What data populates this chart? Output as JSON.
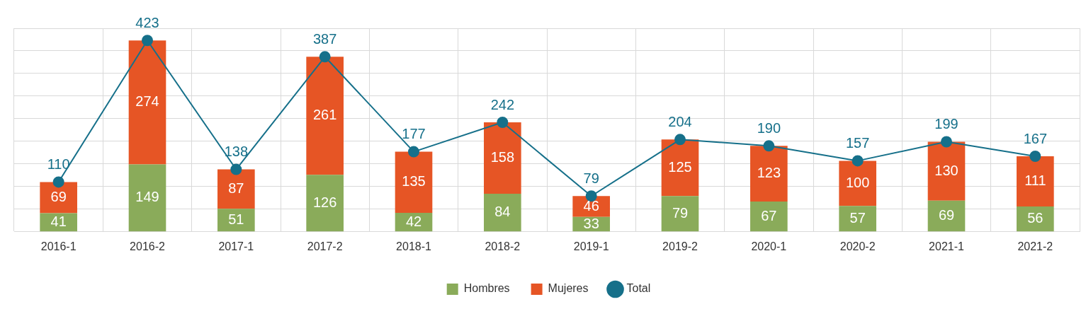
{
  "chart_data": {
    "type": "bar",
    "stacked": true,
    "categories": [
      "2016-1",
      "2016-2",
      "2017-1",
      "2017-2",
      "2018-1",
      "2018-2",
      "2019-1",
      "2019-2",
      "2020-1",
      "2020-2",
      "2021-1",
      "2021-2"
    ],
    "series": [
      {
        "name": "Hombres",
        "color": "#8aab5a",
        "values": [
          41,
          149,
          51,
          126,
          42,
          84,
          33,
          79,
          67,
          57,
          69,
          56
        ]
      },
      {
        "name": "Mujeres",
        "color": "#e65525",
        "values": [
          69,
          274,
          87,
          261,
          135,
          158,
          46,
          125,
          123,
          100,
          130,
          111
        ]
      },
      {
        "name": "Total",
        "type": "line",
        "color": "#16708a",
        "marker": "circle",
        "values": [
          110,
          423,
          138,
          387,
          177,
          242,
          79,
          204,
          190,
          157,
          199,
          167
        ]
      }
    ],
    "ylim": [
      0,
      450
    ],
    "yticks": [
      {
        "value": 0,
        "label": null
      },
      {
        "value": 50,
        "label": null
      },
      {
        "value": 100,
        "label": null
      },
      {
        "value": 150,
        "label": null
      },
      {
        "value": 200,
        "label": null
      },
      {
        "value": 250,
        "label": null
      },
      {
        "value": 300,
        "label": null
      },
      {
        "value": 350,
        "label": null
      },
      {
        "value": 400,
        "label": null
      },
      {
        "value": 450,
        "label": null
      }
    ],
    "tick_labels": "x",
    "grid": true,
    "legend": "bottom",
    "data_labels": true
  }
}
